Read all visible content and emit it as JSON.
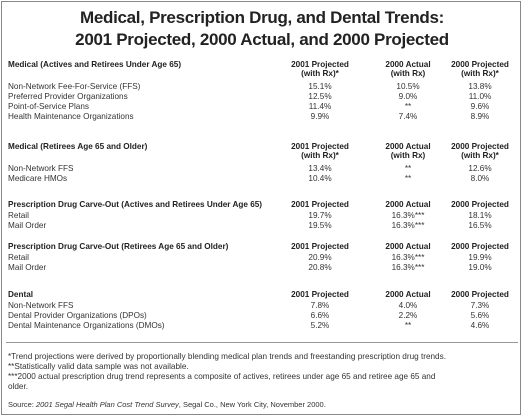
{
  "title": [
    "Medical, Prescription Drug, and Dental Trends:",
    "2001 Projected, 2000 Actual, and 2000 Projected"
  ],
  "sections": [
    {
      "title": "Medical (Actives and Retirees Under Age 65)",
      "columns": [
        [
          "2001 Projected",
          "(with Rx)*"
        ],
        [
          "2000 Actual",
          "(with Rx)"
        ],
        [
          "2000 Projected",
          "(with Rx)*"
        ]
      ],
      "rows": [
        [
          "Non-Network Fee-For-Service (FFS)",
          "15.1%",
          "10.5%",
          "13.8%"
        ],
        [
          "Preferred Provider Organizations",
          "12.5%",
          "9.0%",
          "11.0%"
        ],
        [
          "Point-of-Service Plans",
          "11.4%",
          "**",
          "9.6%"
        ],
        [
          "Health Maintenance Organizations",
          "9.9%",
          "7.4%",
          "8.9%"
        ]
      ]
    },
    {
      "title": "Medical (Retirees Age 65 and Older)",
      "columns": [
        [
          "2001 Projected",
          "(with Rx)*"
        ],
        [
          "2000 Actual",
          "(with Rx)"
        ],
        [
          "2000 Projected",
          "(with Rx)*"
        ]
      ],
      "rows": [
        [
          "Non-Network FFS",
          "13.4%",
          "**",
          "12.6%"
        ],
        [
          "Medicare HMOs",
          "10.4%",
          "**",
          "8.0%"
        ]
      ]
    },
    {
      "title": "Prescription Drug Carve-Out (Actives and Retirees Under Age 65)",
      "columns": [
        [
          "2001 Projected"
        ],
        [
          "2000 Actual"
        ],
        [
          "2000 Projected"
        ]
      ],
      "rows": [
        [
          "Retail",
          "19.7%",
          "16.3%***",
          "18.1%"
        ],
        [
          "Mail Order",
          "19.5%",
          "16.3%***",
          "16.5%"
        ]
      ]
    },
    {
      "title": "Prescription Drug Carve-Out (Retirees Age 65 and Older)",
      "columns": [
        [
          "2001 Projected"
        ],
        [
          "2000 Actual"
        ],
        [
          "2000 Projected"
        ]
      ],
      "rows": [
        [
          "Retail",
          "20.9%",
          "16.3%***",
          "19.9%"
        ],
        [
          "Mail Order",
          "20.8%",
          "16.3%***",
          "19.0%"
        ]
      ]
    },
    {
      "title": "Dental",
      "columns": [
        [
          "2001 Projected"
        ],
        [
          "2000 Actual"
        ],
        [
          "2000 Projected"
        ]
      ],
      "rows": [
        [
          "Non-Network FFS",
          "7.8%",
          "4.0%",
          "7.3%"
        ],
        [
          "Dental Provider Organizations (DPOs)",
          "6.6%",
          "2.2%",
          "5.6%"
        ],
        [
          "Dental Maintenance Organizations (DMOs)",
          "5.2%",
          "**",
          "4.6%"
        ]
      ]
    }
  ],
  "footnotes": [
    "*Trend projections were derived by proportionally blending medical plan trends and freestanding prescription drug trends.",
    "**Statistically valid data sample was not available.",
    [
      "***2000 actual prescription drug trend represents a composite of actives, retirees under age 65 and retiree age 65 and",
      "older."
    ]
  ],
  "source": {
    "label": "Source: ",
    "title": "2001 Segal Health Plan Cost Trend Survey",
    "rest": ", Segal Co., New York City, November 2000."
  }
}
